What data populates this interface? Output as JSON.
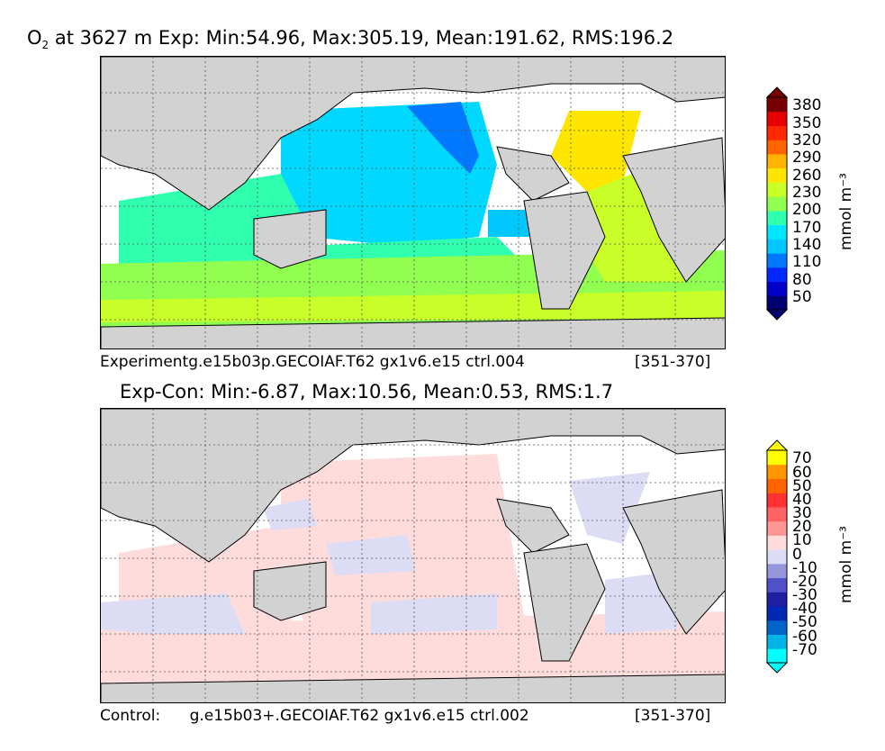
{
  "panels": [
    {
      "title_prefix": "O",
      "title_sub": "2",
      "title_rest": " at 3627 m Exp: Min:54.96, Max:305.19, Mean:191.62, RMS:196.2",
      "caption_left": "Experimentg.e15b03p.GECOIAF.T62 gx1v6.e15 ctrl.004",
      "caption_right": "[351-370]",
      "colorbar": {
        "ticks": [
          "380",
          "350",
          "320",
          "290",
          "260",
          "230",
          "200",
          "170",
          "140",
          "110",
          "80",
          "50"
        ],
        "unit": "mmol m⁻³",
        "colors": [
          "#000070",
          "#0000c8",
          "#0028ff",
          "#0078ff",
          "#00c8ff",
          "#00e6ff",
          "#30ffb0",
          "#90ff50",
          "#c8ff28",
          "#ffe600",
          "#ffb400",
          "#ff6400",
          "#ff2800",
          "#e60000",
          "#780000"
        ]
      }
    },
    {
      "title": "Exp-Con: Min:-6.87, Max:10.56, Mean:0.53, RMS:1.7",
      "caption_left": "Control:      g.e15b03+.GECOIAF.T62 gx1v6.e15 ctrl.002",
      "caption_right": "[351-370]",
      "colorbar": {
        "ticks": [
          "70",
          "60",
          "50",
          "40",
          "30",
          "20",
          "10",
          "0",
          "-10",
          "-20",
          "-30",
          "-40",
          "-50",
          "-60",
          "-70"
        ],
        "unit": "mmol m⁻³",
        "colors": [
          "#00ffff",
          "#00b4e6",
          "#0064c8",
          "#0028b4",
          "#1e1ea0",
          "#5050c8",
          "#9696dc",
          "#dcdcf5",
          "#ffdcdc",
          "#ff9696",
          "#ff6464",
          "#ff3232",
          "#ff6400",
          "#ff9600",
          "#ffff00"
        ]
      }
    }
  ],
  "colors": {
    "land": "#d2d2d2",
    "ocean_missing": "#ffffff",
    "grid": "#555555"
  }
}
